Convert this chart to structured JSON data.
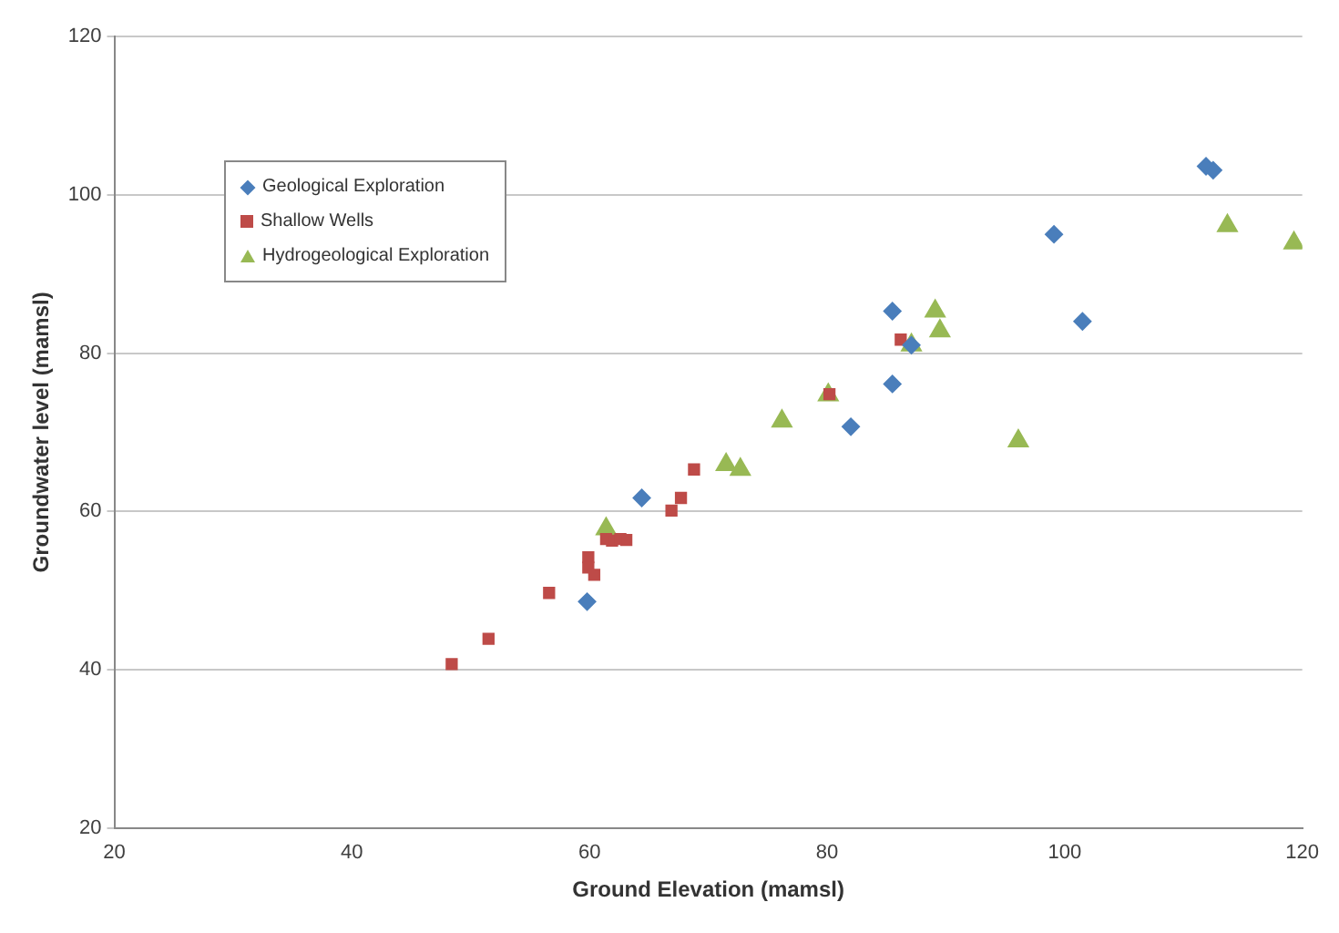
{
  "chart_data": {
    "type": "scatter",
    "xlabel": "Ground Elevation (mamsl)",
    "ylabel": "Groundwater level (mamsl)",
    "xlim": [
      20,
      120
    ],
    "xticks": [
      20,
      40,
      60,
      80,
      100,
      120
    ],
    "ylim": [
      20,
      120
    ],
    "yticks": [
      20,
      40,
      60,
      80,
      100,
      120
    ],
    "grid": "y",
    "legend": "top left",
    "series": [
      {
        "name": "Geological Exploration",
        "color": "#4a7ebb",
        "marker": "diamond",
        "x": [
          59.8,
          64.4,
          85.5,
          85.5,
          82.0,
          99.1,
          101.5,
          111.9,
          112.5,
          87.1
        ],
        "values": [
          48.6,
          61.7,
          85.3,
          76.1,
          70.7,
          95.0,
          84.0,
          103.6,
          103.1,
          81.0
        ]
      },
      {
        "name": "Shallow Wells",
        "color": "#be4b48",
        "marker": "square",
        "x": [
          48.4,
          51.5,
          56.6,
          59.9,
          59.9,
          60.4,
          61.4,
          61.9,
          62.6,
          63.1,
          66.9,
          67.7,
          68.8,
          80.2,
          86.2
        ],
        "values": [
          40.7,
          43.9,
          49.7,
          54.2,
          52.9,
          52.0,
          56.5,
          56.3,
          56.5,
          56.4,
          60.1,
          61.7,
          65.3,
          74.8,
          81.7
        ]
      },
      {
        "name": "Hydrogeological Exploration",
        "color": "#98b954",
        "marker": "triangle",
        "x": [
          61.4,
          71.5,
          72.7,
          76.2,
          80.1,
          89.1,
          89.5,
          87.1,
          96.1,
          113.7,
          119.3
        ],
        "values": [
          57.8,
          65.9,
          65.3,
          71.4,
          74.7,
          85.3,
          82.8,
          81.0,
          68.9,
          96.1,
          93.9
        ]
      }
    ]
  }
}
